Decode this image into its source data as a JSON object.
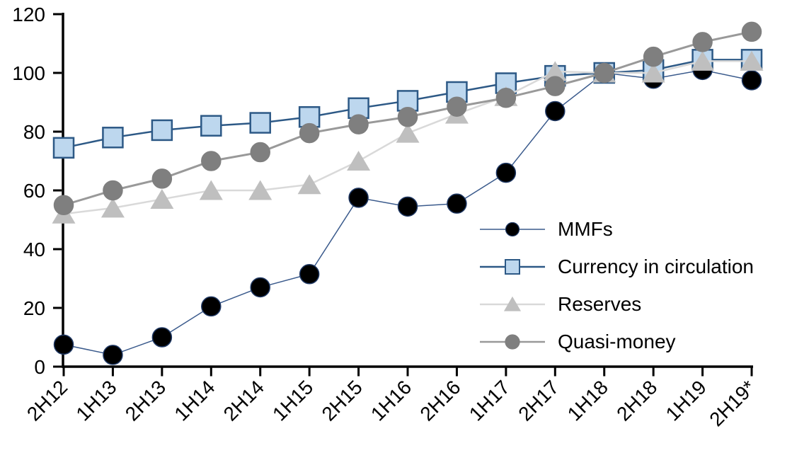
{
  "chart_data": {
    "type": "line",
    "title": "",
    "xlabel": "",
    "ylabel": "",
    "categories": [
      "2H12",
      "1H13",
      "2H13",
      "1H14",
      "2H14",
      "1H15",
      "2H15",
      "1H16",
      "2H16",
      "1H17",
      "2H17",
      "1H18",
      "2H18",
      "1H19",
      "2H19*"
    ],
    "series": [
      {
        "name": "MMFs",
        "marker": "circle",
        "marker_fill": "#000000",
        "marker_edge": "#1F3864",
        "line_color": "#3A5A8C",
        "line_width": 1.5,
        "values": [
          7.5,
          4,
          10,
          20.5,
          27,
          31.5,
          57.5,
          54.5,
          55.5,
          66,
          87,
          100,
          98,
          101,
          97.5
        ]
      },
      {
        "name": "Currency in circulation",
        "marker": "square",
        "marker_fill": "#BDD7EE",
        "marker_edge": "#2D5986",
        "line_color": "#2D5986",
        "line_width": 2.5,
        "values": [
          74.5,
          78,
          80.5,
          82,
          83,
          85,
          88,
          90.5,
          93.5,
          96.5,
          99,
          100,
          101,
          104.5,
          104.5
        ]
      },
      {
        "name": "Reserves",
        "marker": "triangle",
        "marker_fill": "#BFBFBF",
        "marker_edge": "#BFBFBF",
        "line_color": "#D9D9D9",
        "line_width": 2.5,
        "values": [
          52,
          54,
          57,
          60,
          60,
          62,
          70,
          79.5,
          86,
          92,
          100.5,
          100,
          100,
          104,
          104
        ]
      },
      {
        "name": "Quasi-money",
        "marker": "circle",
        "marker_fill": "#7F7F7F",
        "marker_edge": "#7F7F7F",
        "line_color": "#999999",
        "line_width": 3,
        "values": [
          55,
          60,
          64,
          70,
          73,
          79.5,
          82.5,
          85,
          88.5,
          91.5,
          95.5,
          100,
          105.5,
          110.5,
          114
        ]
      }
    ],
    "ylim": [
      0,
      120
    ],
    "yticks": [
      0,
      20,
      40,
      60,
      80,
      100,
      120
    ],
    "grid": false,
    "legend_position": "inside-right",
    "axis_color": "#000000",
    "background": "#FFFFFF"
  }
}
